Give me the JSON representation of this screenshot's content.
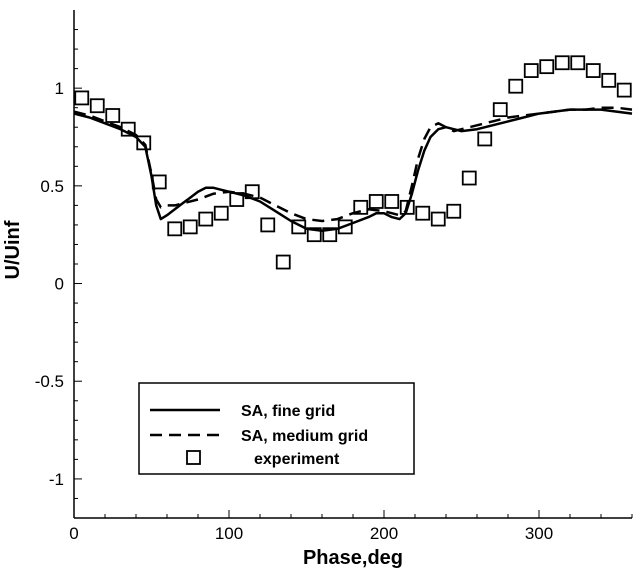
{
  "chart_data": {
    "type": "line",
    "title": "",
    "xlabel": "Phase,deg",
    "ylabel": "U/Uinf",
    "xlim": [
      0,
      360
    ],
    "ylim": [
      -1.2,
      1.4
    ],
    "x_ticks": [
      0,
      100,
      200,
      300
    ],
    "x_tick_labels": [
      "0",
      "100",
      "200",
      "300"
    ],
    "y_ticks": [
      -1,
      -0.5,
      0,
      0.5,
      1
    ],
    "y_tick_labels": [
      "-1",
      "-0.5",
      "0",
      "0.5",
      "1"
    ],
    "grid": false,
    "legend_position": "bottom-left",
    "series": [
      {
        "name": "SA, fine grid",
        "style": "solid",
        "x": [
          0,
          10,
          20,
          30,
          40,
          46,
          50,
          53,
          56,
          60,
          65,
          70,
          75,
          80,
          85,
          90,
          95,
          100,
          110,
          120,
          130,
          140,
          150,
          160,
          170,
          180,
          190,
          195,
          200,
          205,
          210,
          214,
          218,
          222,
          226,
          230,
          235,
          240,
          245,
          250,
          260,
          270,
          280,
          290,
          300,
          310,
          320,
          330,
          340,
          350,
          360
        ],
        "y": [
          0.87,
          0.85,
          0.82,
          0.79,
          0.75,
          0.7,
          0.55,
          0.4,
          0.33,
          0.35,
          0.38,
          0.41,
          0.44,
          0.47,
          0.49,
          0.49,
          0.48,
          0.47,
          0.45,
          0.42,
          0.37,
          0.32,
          0.28,
          0.27,
          0.28,
          0.31,
          0.34,
          0.36,
          0.36,
          0.34,
          0.33,
          0.36,
          0.46,
          0.58,
          0.68,
          0.75,
          0.79,
          0.8,
          0.79,
          0.78,
          0.79,
          0.81,
          0.83,
          0.85,
          0.87,
          0.88,
          0.89,
          0.89,
          0.89,
          0.88,
          0.87
        ]
      },
      {
        "name": "SA, medium grid",
        "style": "dashed",
        "x": [
          0,
          10,
          20,
          30,
          40,
          46,
          50,
          53,
          56,
          60,
          65,
          70,
          80,
          90,
          100,
          110,
          120,
          130,
          140,
          150,
          160,
          170,
          180,
          190,
          200,
          210,
          214,
          218,
          222,
          226,
          230,
          235,
          240,
          245,
          250,
          255,
          260,
          270,
          280,
          290,
          300,
          310,
          320,
          330,
          340,
          350,
          360
        ],
        "y": [
          0.88,
          0.86,
          0.83,
          0.8,
          0.76,
          0.71,
          0.56,
          0.43,
          0.39,
          0.4,
          0.4,
          0.41,
          0.43,
          0.46,
          0.47,
          0.46,
          0.44,
          0.4,
          0.36,
          0.33,
          0.32,
          0.33,
          0.36,
          0.38,
          0.37,
          0.35,
          0.37,
          0.5,
          0.64,
          0.74,
          0.8,
          0.82,
          0.8,
          0.78,
          0.79,
          0.8,
          0.81,
          0.83,
          0.85,
          0.86,
          0.87,
          0.88,
          0.89,
          0.89,
          0.9,
          0.9,
          0.89
        ]
      },
      {
        "name": "experiment",
        "style": "markers",
        "x": [
          5,
          15,
          25,
          35,
          45,
          55,
          65,
          75,
          85,
          95,
          105,
          115,
          125,
          135,
          145,
          155,
          165,
          175,
          185,
          195,
          205,
          215,
          225,
          235,
          245,
          255,
          265,
          275,
          285,
          295,
          305,
          315,
          325,
          335,
          345,
          355
        ],
        "y": [
          0.95,
          0.91,
          0.86,
          0.79,
          0.72,
          0.52,
          0.28,
          0.29,
          0.33,
          0.36,
          0.43,
          0.47,
          0.3,
          0.11,
          0.29,
          0.25,
          0.25,
          0.29,
          0.39,
          0.42,
          0.42,
          0.39,
          0.36,
          0.33,
          0.37,
          0.54,
          0.74,
          0.89,
          1.01,
          1.09,
          1.11,
          1.13,
          1.13,
          1.09,
          1.04,
          0.99
        ]
      }
    ]
  }
}
